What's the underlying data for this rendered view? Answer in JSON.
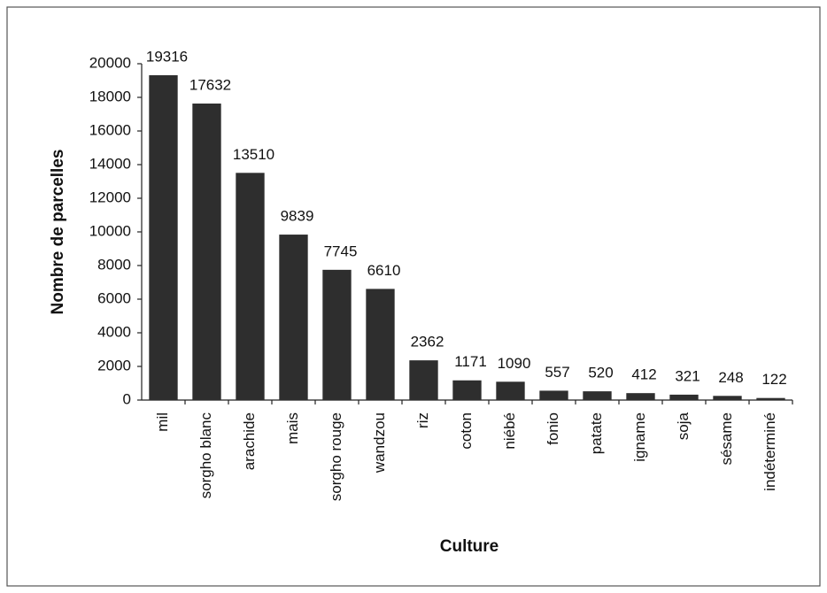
{
  "chart_data": {
    "type": "bar",
    "x_label": "Culture",
    "y_label": "Nombre de parcelles",
    "categories": [
      "mil",
      "sorgho blanc",
      "arachide",
      "mais",
      "sorgho rouge",
      "wandzou",
      "riz",
      "coton",
      "niébé",
      "fonio",
      "patate",
      "igname",
      "soja",
      "sésame",
      "indéterminé"
    ],
    "values": [
      19316,
      17632,
      13510,
      9839,
      7745,
      6610,
      2362,
      1171,
      1090,
      557,
      520,
      412,
      321,
      248,
      122
    ],
    "color": "#2e2e2e",
    "ylim": [
      0,
      20000
    ],
    "yticks": [
      0,
      2000,
      4000,
      6000,
      8000,
      10000,
      12000,
      14000,
      16000,
      18000,
      20000
    ],
    "grid": false
  }
}
